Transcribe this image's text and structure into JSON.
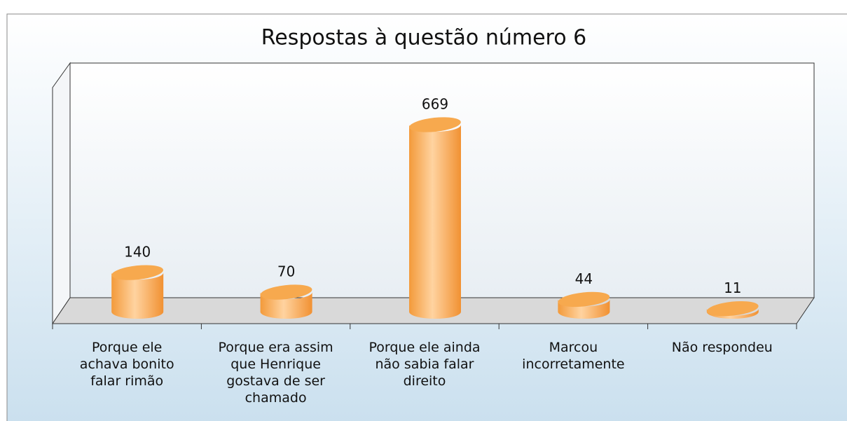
{
  "chart_data": {
    "type": "bar3d",
    "title": "Respostas à questão número 6",
    "categories": [
      "Porque ele achava bonito falar rimão",
      "Porque era assim que Henrique gostava de ser chamado",
      "Porque ele ainda não sabia falar direito",
      "Marcou incorretamente",
      "Não respondeu"
    ],
    "values": [
      140,
      70,
      669,
      44,
      11
    ],
    "color": "#f7a94e"
  }
}
